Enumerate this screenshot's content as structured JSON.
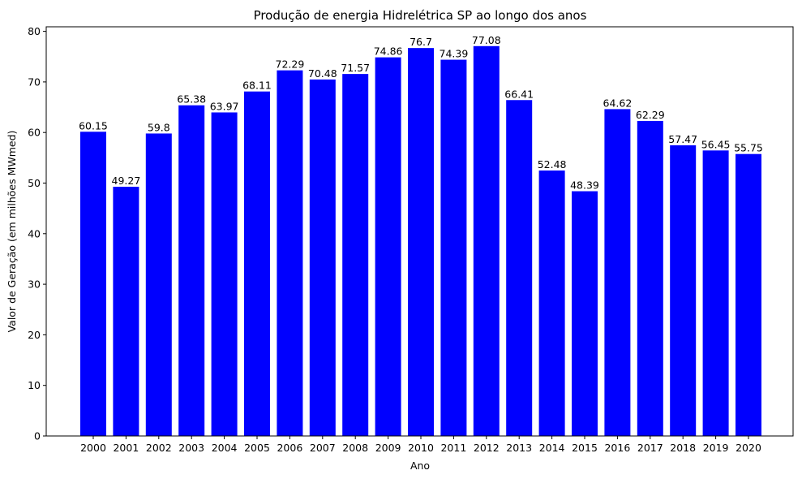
{
  "chart_data": {
    "type": "bar",
    "title": "Produção de energia Hidrelétrica SP ao longo dos anos",
    "xlabel": "Ano",
    "ylabel": "Valor de Geração (em milhões MWmed)",
    "categories": [
      "2000",
      "2001",
      "2002",
      "2003",
      "2004",
      "2005",
      "2006",
      "2007",
      "2008",
      "2009",
      "2010",
      "2011",
      "2012",
      "2013",
      "2014",
      "2015",
      "2016",
      "2017",
      "2018",
      "2019",
      "2020"
    ],
    "values": [
      60.15,
      49.27,
      59.8,
      65.38,
      63.97,
      68.11,
      72.29,
      70.48,
      71.57,
      74.86,
      76.7,
      74.39,
      77.08,
      66.41,
      52.48,
      48.39,
      64.62,
      62.29,
      57.47,
      56.45,
      55.75
    ],
    "value_labels": [
      "60.15",
      "49.27",
      "59.8",
      "65.38",
      "63.97",
      "68.11",
      "72.29",
      "70.48",
      "71.57",
      "74.86",
      "76.7",
      "74.39",
      "77.08",
      "66.41",
      "52.48",
      "48.39",
      "64.62",
      "62.29",
      "57.47",
      "56.45",
      "55.75"
    ],
    "ylim": [
      0,
      80.9
    ],
    "yticks": [
      0,
      10,
      20,
      30,
      40,
      50,
      60,
      70,
      80
    ],
    "bar_color": "#0000ff",
    "grid": false,
    "legend": false
  }
}
